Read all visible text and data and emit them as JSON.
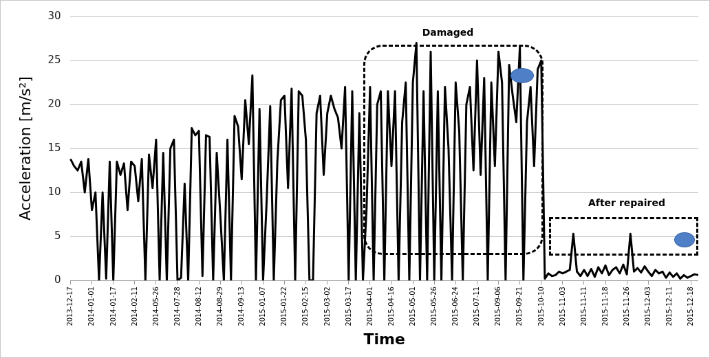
{
  "chart_data": {
    "type": "line",
    "xlabel": "Time",
    "ylabel": "Acceleration [m/s²]",
    "categories": [
      "2013-12-17",
      null,
      null,
      null,
      null,
      null,
      "2014-01-01",
      null,
      null,
      null,
      null,
      null,
      "2014-01-17",
      null,
      null,
      null,
      null,
      null,
      "2014-02-11",
      null,
      null,
      null,
      null,
      null,
      "2014-05-26",
      null,
      null,
      null,
      null,
      null,
      "2014-07-28",
      null,
      null,
      null,
      null,
      null,
      "2014-08-12",
      null,
      null,
      null,
      null,
      null,
      "2014-08-29",
      null,
      null,
      null,
      null,
      null,
      "2014-09-13",
      null,
      null,
      null,
      null,
      null,
      "2015-01-07",
      null,
      null,
      null,
      null,
      null,
      "2015-01-22",
      null,
      null,
      null,
      null,
      null,
      "2015-02-15",
      null,
      null,
      null,
      null,
      null,
      "2015-03-02",
      null,
      null,
      null,
      null,
      null,
      "2015-03-17",
      null,
      null,
      null,
      null,
      null,
      "2015-04-01",
      null,
      null,
      null,
      null,
      null,
      "2015-04-16",
      null,
      null,
      null,
      null,
      null,
      "2015-05-01",
      null,
      null,
      null,
      null,
      null,
      "2015-05-26",
      null,
      null,
      null,
      null,
      null,
      "2015-06-24",
      null,
      null,
      null,
      null,
      null,
      "2015-07-11",
      null,
      null,
      null,
      null,
      null,
      "2015-09-06",
      null,
      null,
      null,
      null,
      null,
      "2015-09-21",
      null,
      null,
      null,
      null,
      null,
      "2015-10-10",
      null,
      null,
      null,
      null,
      null,
      "2015-11-03",
      null,
      null,
      null,
      null,
      null,
      "2015-11-11",
      null,
      null,
      null,
      null,
      null,
      "2015-11-18",
      null,
      null,
      null,
      null,
      null,
      "2015-11-26",
      null,
      null,
      null,
      null,
      null,
      "2015-12-03",
      null,
      null,
      null,
      null,
      null,
      "2015-12-11",
      null,
      null,
      null,
      null,
      null,
      "2015-12-18",
      null,
      null
    ],
    "series": [
      {
        "color": "#000000",
        "values": [
          13.8,
          13,
          12.5,
          13.5,
          10,
          13.8,
          8,
          10,
          0,
          10,
          0.2,
          13.5,
          0,
          13.5,
          12,
          13.3,
          8,
          13.5,
          13,
          9,
          13.8,
          0,
          14.3,
          10.5,
          16,
          0,
          14.5,
          0,
          15,
          16,
          0,
          0.3,
          11,
          0,
          17.3,
          16.5,
          17,
          0.5,
          16.5,
          16.3,
          0,
          14.5,
          7.5,
          0,
          16,
          0,
          18.7,
          17.5,
          11.5,
          20.5,
          15.5,
          23.3,
          0,
          19.5,
          0,
          9,
          19.8,
          0,
          13.5,
          20.5,
          21,
          10.5,
          21.8,
          0,
          21.5,
          21,
          16,
          0,
          0,
          19,
          21,
          12,
          19,
          21,
          19.5,
          18.5,
          15,
          22,
          0,
          21.5,
          0,
          19,
          0,
          8,
          22,
          0,
          20,
          21.5,
          0,
          21.5,
          13,
          21.5,
          0,
          18,
          22.5,
          0,
          22.5,
          27,
          0,
          21.5,
          0,
          26,
          0,
          21.5,
          0,
          22,
          15,
          0,
          22.5,
          17,
          0,
          20,
          22,
          12.5,
          25,
          12,
          23,
          0,
          22.5,
          13,
          26,
          22.5,
          0,
          24.5,
          21,
          18,
          26.5,
          0,
          18,
          22,
          13,
          24,
          25,
          0.2,
          0.8,
          0.5,
          0.6,
          1,
          0.8,
          1,
          1.2,
          5.3,
          1,
          0.5,
          1.2,
          0.5,
          1.3,
          0.4,
          1.5,
          0.8,
          1.7,
          0.6,
          1.2,
          1.5,
          0.8,
          1.8,
          0.7,
          5.3,
          1,
          1.4,
          0.9,
          1.6,
          1,
          0.5,
          1.2,
          0.8,
          1,
          0.3,
          0.9,
          0.4,
          0.8,
          0.2,
          0.6,
          0.3,
          0.5,
          0.7,
          0.6
        ]
      }
    ],
    "ylim": [
      0,
      30
    ],
    "yticks": [
      0,
      5,
      10,
      15,
      20,
      25,
      30
    ],
    "grid": "y",
    "legend": false,
    "marker": "none",
    "line_style": "solid",
    "annotations": [
      "Damaged",
      "After repaired"
    ]
  }
}
